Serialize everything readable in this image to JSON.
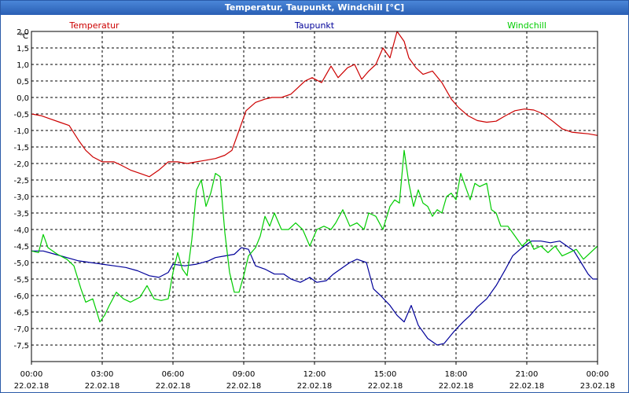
{
  "window": {
    "title": "Temperatur, Taupunkt, Windchill [°C]"
  },
  "chart_data": {
    "type": "line",
    "title": "Temperatur, Taupunkt, Windchill [°C]",
    "ylabel": "°C",
    "ylim": [
      -8.0,
      2.0
    ],
    "grid": true,
    "y_ticks": [
      "2,0",
      "1,5",
      "1,0",
      "0,5",
      "0,0",
      "-0,5",
      "-1,0",
      "-1,5",
      "-2,0",
      "-2,5",
      "-3,0",
      "-3,5",
      "-4,0",
      "-4,5",
      "-5,0",
      "-5,5",
      "-6,0",
      "-6,5",
      "-7,0",
      "-7,5"
    ],
    "y_tick_values": [
      2.0,
      1.5,
      1.0,
      0.5,
      0.0,
      -0.5,
      -1.0,
      -1.5,
      -2.0,
      -2.5,
      -3.0,
      -3.5,
      -4.0,
      -4.5,
      -5.0,
      -5.5,
      -6.0,
      -6.5,
      -7.0,
      -7.5
    ],
    "x_ticks": [
      {
        "time": "00:00",
        "date": "22.02.18",
        "hour": 0
      },
      {
        "time": "03:00",
        "date": "22.02.18",
        "hour": 3
      },
      {
        "time": "06:00",
        "date": "22.02.18",
        "hour": 6
      },
      {
        "time": "09:00",
        "date": "22.02.18",
        "hour": 9
      },
      {
        "time": "12:00",
        "date": "22.02.18",
        "hour": 12
      },
      {
        "time": "15:00",
        "date": "22.02.18",
        "hour": 15
      },
      {
        "time": "18:00",
        "date": "22.02.18",
        "hour": 18
      },
      {
        "time": "21:00",
        "date": "22.02.18",
        "hour": 21
      },
      {
        "time": "00:00",
        "date": "23.02.18",
        "hour": 24
      }
    ],
    "xlim": [
      0,
      24
    ],
    "series": [
      {
        "name": "Temperatur",
        "color": "#cc0000",
        "legend_anchor": "start",
        "points": [
          [
            0,
            -0.5
          ],
          [
            0.4,
            -0.55
          ],
          [
            0.8,
            -0.65
          ],
          [
            1.2,
            -0.75
          ],
          [
            1.6,
            -0.85
          ],
          [
            2.0,
            -1.3
          ],
          [
            2.3,
            -1.6
          ],
          [
            2.6,
            -1.8
          ],
          [
            3.0,
            -1.95
          ],
          [
            3.5,
            -1.95
          ],
          [
            3.8,
            -2.05
          ],
          [
            4.2,
            -2.2
          ],
          [
            4.6,
            -2.3
          ],
          [
            5.0,
            -2.4
          ],
          [
            5.4,
            -2.2
          ],
          [
            5.8,
            -1.95
          ],
          [
            6.2,
            -1.95
          ],
          [
            6.6,
            -2.0
          ],
          [
            7.0,
            -1.95
          ],
          [
            7.4,
            -1.9
          ],
          [
            7.8,
            -1.85
          ],
          [
            8.2,
            -1.75
          ],
          [
            8.5,
            -1.6
          ],
          [
            8.8,
            -1.0
          ],
          [
            9.1,
            -0.4
          ],
          [
            9.5,
            -0.15
          ],
          [
            9.9,
            -0.05
          ],
          [
            10.2,
            0.0
          ],
          [
            10.6,
            0.0
          ],
          [
            11.0,
            0.1
          ],
          [
            11.3,
            0.3
          ],
          [
            11.6,
            0.5
          ],
          [
            11.9,
            0.6
          ],
          [
            12.3,
            0.45
          ],
          [
            12.7,
            0.95
          ],
          [
            13.0,
            0.6
          ],
          [
            13.4,
            0.9
          ],
          [
            13.7,
            1.0
          ],
          [
            14.0,
            0.55
          ],
          [
            14.3,
            0.8
          ],
          [
            14.6,
            1.0
          ],
          [
            14.9,
            1.5
          ],
          [
            15.2,
            1.2
          ],
          [
            15.5,
            2.0
          ],
          [
            15.8,
            1.7
          ],
          [
            16.0,
            1.2
          ],
          [
            16.3,
            0.9
          ],
          [
            16.6,
            0.7
          ],
          [
            17.0,
            0.8
          ],
          [
            17.4,
            0.45
          ],
          [
            17.8,
            -0.05
          ],
          [
            18.1,
            -0.3
          ],
          [
            18.5,
            -0.55
          ],
          [
            18.9,
            -0.7
          ],
          [
            19.3,
            -0.75
          ],
          [
            19.7,
            -0.72
          ],
          [
            20.1,
            -0.55
          ],
          [
            20.5,
            -0.4
          ],
          [
            20.9,
            -0.35
          ],
          [
            21.3,
            -0.38
          ],
          [
            21.7,
            -0.5
          ],
          [
            22.1,
            -0.72
          ],
          [
            22.5,
            -0.95
          ],
          [
            22.9,
            -1.05
          ],
          [
            23.3,
            -1.08
          ],
          [
            23.6,
            -1.1
          ],
          [
            24.0,
            -1.15
          ]
        ]
      },
      {
        "name": "Taupunkt",
        "color": "#000099",
        "legend_anchor": "middle",
        "points": [
          [
            0,
            -4.65
          ],
          [
            0.5,
            -4.65
          ],
          [
            1.0,
            -4.75
          ],
          [
            1.5,
            -4.85
          ],
          [
            2.0,
            -4.95
          ],
          [
            2.5,
            -5.0
          ],
          [
            3.0,
            -5.05
          ],
          [
            3.5,
            -5.1
          ],
          [
            4.0,
            -5.15
          ],
          [
            4.5,
            -5.25
          ],
          [
            5.0,
            -5.4
          ],
          [
            5.4,
            -5.45
          ],
          [
            5.8,
            -5.3
          ],
          [
            6.0,
            -5.05
          ],
          [
            6.5,
            -5.1
          ],
          [
            7.0,
            -5.05
          ],
          [
            7.5,
            -4.95
          ],
          [
            7.8,
            -4.85
          ],
          [
            8.2,
            -4.8
          ],
          [
            8.6,
            -4.75
          ],
          [
            8.9,
            -4.55
          ],
          [
            9.2,
            -4.6
          ],
          [
            9.5,
            -5.1
          ],
          [
            9.9,
            -5.2
          ],
          [
            10.3,
            -5.35
          ],
          [
            10.7,
            -5.35
          ],
          [
            11.0,
            -5.5
          ],
          [
            11.4,
            -5.6
          ],
          [
            11.8,
            -5.45
          ],
          [
            12.1,
            -5.6
          ],
          [
            12.5,
            -5.55
          ],
          [
            12.8,
            -5.35
          ],
          [
            13.1,
            -5.2
          ],
          [
            13.5,
            -5.0
          ],
          [
            13.8,
            -4.9
          ],
          [
            14.2,
            -5.0
          ],
          [
            14.5,
            -5.8
          ],
          [
            14.8,
            -6.0
          ],
          [
            15.2,
            -6.3
          ],
          [
            15.5,
            -6.6
          ],
          [
            15.8,
            -6.8
          ],
          [
            16.1,
            -6.3
          ],
          [
            16.4,
            -6.9
          ],
          [
            16.8,
            -7.3
          ],
          [
            17.2,
            -7.5
          ],
          [
            17.5,
            -7.45
          ],
          [
            17.9,
            -7.1
          ],
          [
            18.3,
            -6.8
          ],
          [
            18.6,
            -6.6
          ],
          [
            18.9,
            -6.35
          ],
          [
            19.3,
            -6.1
          ],
          [
            19.7,
            -5.7
          ],
          [
            20.1,
            -5.2
          ],
          [
            20.4,
            -4.8
          ],
          [
            20.8,
            -4.55
          ],
          [
            21.2,
            -4.35
          ],
          [
            21.6,
            -4.35
          ],
          [
            22.0,
            -4.4
          ],
          [
            22.4,
            -4.35
          ],
          [
            22.7,
            -4.5
          ],
          [
            23.0,
            -4.65
          ],
          [
            23.3,
            -5.0
          ],
          [
            23.6,
            -5.35
          ],
          [
            23.8,
            -5.5
          ],
          [
            24.0,
            -5.5
          ]
        ]
      },
      {
        "name": "Windchill",
        "color": "#00cc00",
        "legend_anchor": "end",
        "points": [
          [
            0,
            -4.65
          ],
          [
            0.3,
            -4.7
          ],
          [
            0.5,
            -4.15
          ],
          [
            0.7,
            -4.55
          ],
          [
            1.1,
            -4.75
          ],
          [
            1.5,
            -4.9
          ],
          [
            1.8,
            -5.1
          ],
          [
            2.1,
            -5.8
          ],
          [
            2.3,
            -6.2
          ],
          [
            2.6,
            -6.1
          ],
          [
            2.9,
            -6.8
          ],
          [
            3.1,
            -6.6
          ],
          [
            3.3,
            -6.3
          ],
          [
            3.6,
            -5.9
          ],
          [
            3.9,
            -6.1
          ],
          [
            4.2,
            -6.2
          ],
          [
            4.6,
            -6.05
          ],
          [
            4.9,
            -5.7
          ],
          [
            5.2,
            -6.1
          ],
          [
            5.5,
            -6.15
          ],
          [
            5.8,
            -6.1
          ],
          [
            6.0,
            -5.3
          ],
          [
            6.2,
            -4.7
          ],
          [
            6.4,
            -5.2
          ],
          [
            6.6,
            -5.4
          ],
          [
            6.8,
            -4.3
          ],
          [
            7.0,
            -2.8
          ],
          [
            7.2,
            -2.5
          ],
          [
            7.4,
            -3.3
          ],
          [
            7.6,
            -2.9
          ],
          [
            7.8,
            -2.3
          ],
          [
            8.0,
            -2.4
          ],
          [
            8.2,
            -4.1
          ],
          [
            8.4,
            -5.3
          ],
          [
            8.6,
            -5.9
          ],
          [
            8.8,
            -5.9
          ],
          [
            9.0,
            -5.4
          ],
          [
            9.2,
            -4.8
          ],
          [
            9.5,
            -4.55
          ],
          [
            9.7,
            -4.2
          ],
          [
            9.9,
            -3.6
          ],
          [
            10.1,
            -3.9
          ],
          [
            10.3,
            -3.5
          ],
          [
            10.6,
            -4.0
          ],
          [
            10.9,
            -4.0
          ],
          [
            11.2,
            -3.8
          ],
          [
            11.5,
            -4.0
          ],
          [
            11.8,
            -4.5
          ],
          [
            12.1,
            -4.0
          ],
          [
            12.4,
            -3.9
          ],
          [
            12.7,
            -4.0
          ],
          [
            12.9,
            -3.8
          ],
          [
            13.2,
            -3.4
          ],
          [
            13.5,
            -3.9
          ],
          [
            13.8,
            -3.8
          ],
          [
            14.1,
            -4.0
          ],
          [
            14.3,
            -3.5
          ],
          [
            14.6,
            -3.6
          ],
          [
            14.9,
            -4.0
          ],
          [
            15.2,
            -3.3
          ],
          [
            15.4,
            -3.1
          ],
          [
            15.6,
            -3.2
          ],
          [
            15.8,
            -1.6
          ],
          [
            16.0,
            -2.6
          ],
          [
            16.2,
            -3.3
          ],
          [
            16.4,
            -2.8
          ],
          [
            16.6,
            -3.2
          ],
          [
            16.8,
            -3.3
          ],
          [
            17.0,
            -3.6
          ],
          [
            17.2,
            -3.4
          ],
          [
            17.4,
            -3.5
          ],
          [
            17.6,
            -3.0
          ],
          [
            17.8,
            -2.9
          ],
          [
            18.0,
            -3.1
          ],
          [
            18.2,
            -2.3
          ],
          [
            18.4,
            -2.7
          ],
          [
            18.6,
            -3.1
          ],
          [
            18.8,
            -2.6
          ],
          [
            19.0,
            -2.7
          ],
          [
            19.3,
            -2.6
          ],
          [
            19.5,
            -3.4
          ],
          [
            19.7,
            -3.5
          ],
          [
            19.9,
            -3.9
          ],
          [
            20.2,
            -3.9
          ],
          [
            20.5,
            -4.2
          ],
          [
            20.8,
            -4.5
          ],
          [
            21.1,
            -4.3
          ],
          [
            21.3,
            -4.6
          ],
          [
            21.6,
            -4.5
          ],
          [
            21.9,
            -4.7
          ],
          [
            22.2,
            -4.5
          ],
          [
            22.5,
            -4.8
          ],
          [
            22.8,
            -4.7
          ],
          [
            23.1,
            -4.6
          ],
          [
            23.4,
            -4.9
          ],
          [
            23.7,
            -4.7
          ],
          [
            24.0,
            -4.5
          ]
        ]
      }
    ]
  }
}
